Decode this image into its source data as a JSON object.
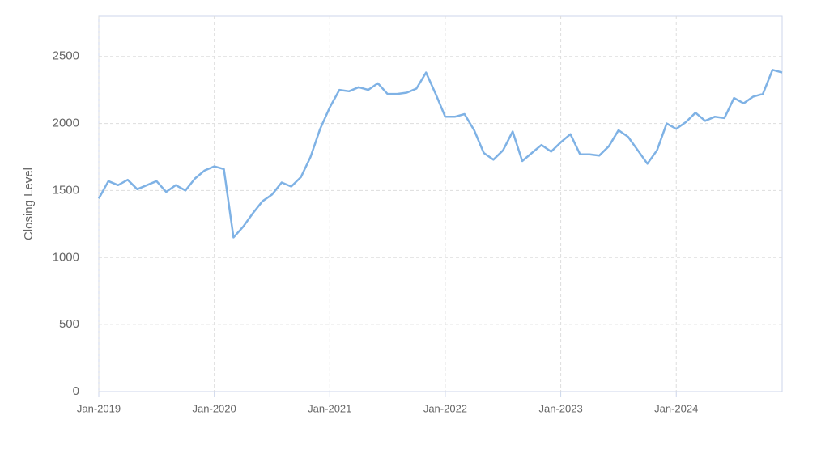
{
  "chart_data": {
    "type": "line",
    "y_label": "Closing Level",
    "x": [
      "2019-01",
      "2019-02",
      "2019-03",
      "2019-04",
      "2019-05",
      "2019-06",
      "2019-07",
      "2019-08",
      "2019-09",
      "2019-10",
      "2019-11",
      "2019-12",
      "2020-01",
      "2020-02",
      "2020-03",
      "2020-04",
      "2020-05",
      "2020-06",
      "2020-07",
      "2020-08",
      "2020-09",
      "2020-10",
      "2020-11",
      "2020-12",
      "2021-01",
      "2021-02",
      "2021-03",
      "2021-04",
      "2021-05",
      "2021-06",
      "2021-07",
      "2021-08",
      "2021-09",
      "2021-10",
      "2021-11",
      "2021-12",
      "2022-01",
      "2022-02",
      "2022-03",
      "2022-04",
      "2022-05",
      "2022-06",
      "2022-07",
      "2022-08",
      "2022-09",
      "2022-10",
      "2022-11",
      "2022-12",
      "2023-01",
      "2023-02",
      "2023-03",
      "2023-04",
      "2023-05",
      "2023-06",
      "2023-07",
      "2023-08",
      "2023-09",
      "2023-10",
      "2023-11",
      "2023-12",
      "2024-01",
      "2024-02",
      "2024-03",
      "2024-04",
      "2024-05",
      "2024-06",
      "2024-07",
      "2024-08",
      "2024-09",
      "2024-10",
      "2024-11",
      "2024-12"
    ],
    "series": [
      {
        "name": "Closing Level",
        "color": "#7fb2e5",
        "values": [
          1440,
          1570,
          1540,
          1580,
          1510,
          1540,
          1570,
          1490,
          1540,
          1500,
          1590,
          1650,
          1680,
          1660,
          1150,
          1230,
          1330,
          1420,
          1470,
          1560,
          1530,
          1600,
          1750,
          1960,
          2120,
          2250,
          2240,
          2270,
          2250,
          2300,
          2220,
          2220,
          2230,
          2260,
          2380,
          2220,
          2050,
          2050,
          2070,
          1950,
          1780,
          1730,
          1800,
          1940,
          1720,
          1780,
          1840,
          1790,
          1860,
          1920,
          1770,
          1770,
          1760,
          1830,
          1950,
          1900,
          1800,
          1700,
          1800,
          2000,
          1960,
          2010,
          2080,
          2020,
          2050,
          2040,
          2190,
          2150,
          2200,
          2220,
          2400,
          2380
        ]
      }
    ],
    "xlim": [
      "2019-01",
      "2024-12"
    ],
    "xticks": [
      {
        "value": "2019-01",
        "label": "Jan-2019"
      },
      {
        "value": "2020-01",
        "label": "Jan-2020"
      },
      {
        "value": "2021-01",
        "label": "Jan-2021"
      },
      {
        "value": "2022-01",
        "label": "Jan-2022"
      },
      {
        "value": "2023-01",
        "label": "Jan-2023"
      },
      {
        "value": "2024-01",
        "label": "Jan-2024"
      }
    ],
    "ylim": [
      0,
      2800
    ],
    "yticks": [
      0,
      500,
      1000,
      1500,
      2000,
      2500
    ],
    "grid": true
  }
}
